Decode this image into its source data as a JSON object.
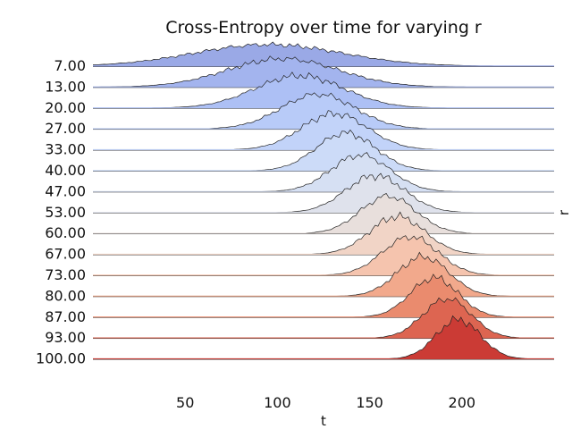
{
  "chart_data": {
    "type": "area",
    "title": "Cross-Entropy over time for varying r",
    "xlabel": "t",
    "ylabel": "r",
    "xlim": [
      0,
      250
    ],
    "x_ticks": [
      50,
      100,
      150,
      200
    ],
    "grid": false,
    "colormap": "coolwarm",
    "series": [
      {
        "name": "7.00",
        "color": "#9aa9e6",
        "mean": 95,
        "sd": 40,
        "peak": 0.55
      },
      {
        "name": "13.00",
        "color": "#a3b4ee",
        "mean": 103,
        "sd": 30,
        "peak": 0.72
      },
      {
        "name": "20.00",
        "color": "#adc0f5",
        "mean": 112,
        "sd": 24,
        "peak": 0.82
      },
      {
        "name": "27.00",
        "color": "#b8cbf8",
        "mean": 122,
        "sd": 20,
        "peak": 0.88
      },
      {
        "name": "33.00",
        "color": "#c2d3f9",
        "mean": 131,
        "sd": 18,
        "peak": 0.92
      },
      {
        "name": "40.00",
        "color": "#ccdbf8",
        "mean": 137,
        "sd": 16,
        "peak": 0.96
      },
      {
        "name": "47.00",
        "color": "#d6e0f3",
        "mean": 145,
        "sd": 16,
        "peak": 0.93
      },
      {
        "name": "53.00",
        "color": "#dfe2ec",
        "mean": 153,
        "sd": 16,
        "peak": 0.94
      },
      {
        "name": "60.00",
        "color": "#e8dfdc",
        "mean": 160,
        "sd": 15,
        "peak": 0.95
      },
      {
        "name": "67.00",
        "color": "#f1d4c6",
        "mean": 165,
        "sd": 15,
        "peak": 0.96
      },
      {
        "name": "73.00",
        "color": "#f5c4ae",
        "mean": 172,
        "sd": 15,
        "peak": 0.98
      },
      {
        "name": "80.00",
        "color": "#f2a98c",
        "mean": 179,
        "sd": 14,
        "peak": 1.0
      },
      {
        "name": "87.00",
        "color": "#ea8b6e",
        "mean": 185,
        "sd": 13,
        "peak": 1.0
      },
      {
        "name": "93.00",
        "color": "#dd6551",
        "mean": 192,
        "sd": 13,
        "peak": 1.0
      },
      {
        "name": "100.00",
        "color": "#cb3b35",
        "mean": 198,
        "sd": 12,
        "peak": 1.0
      }
    ]
  }
}
